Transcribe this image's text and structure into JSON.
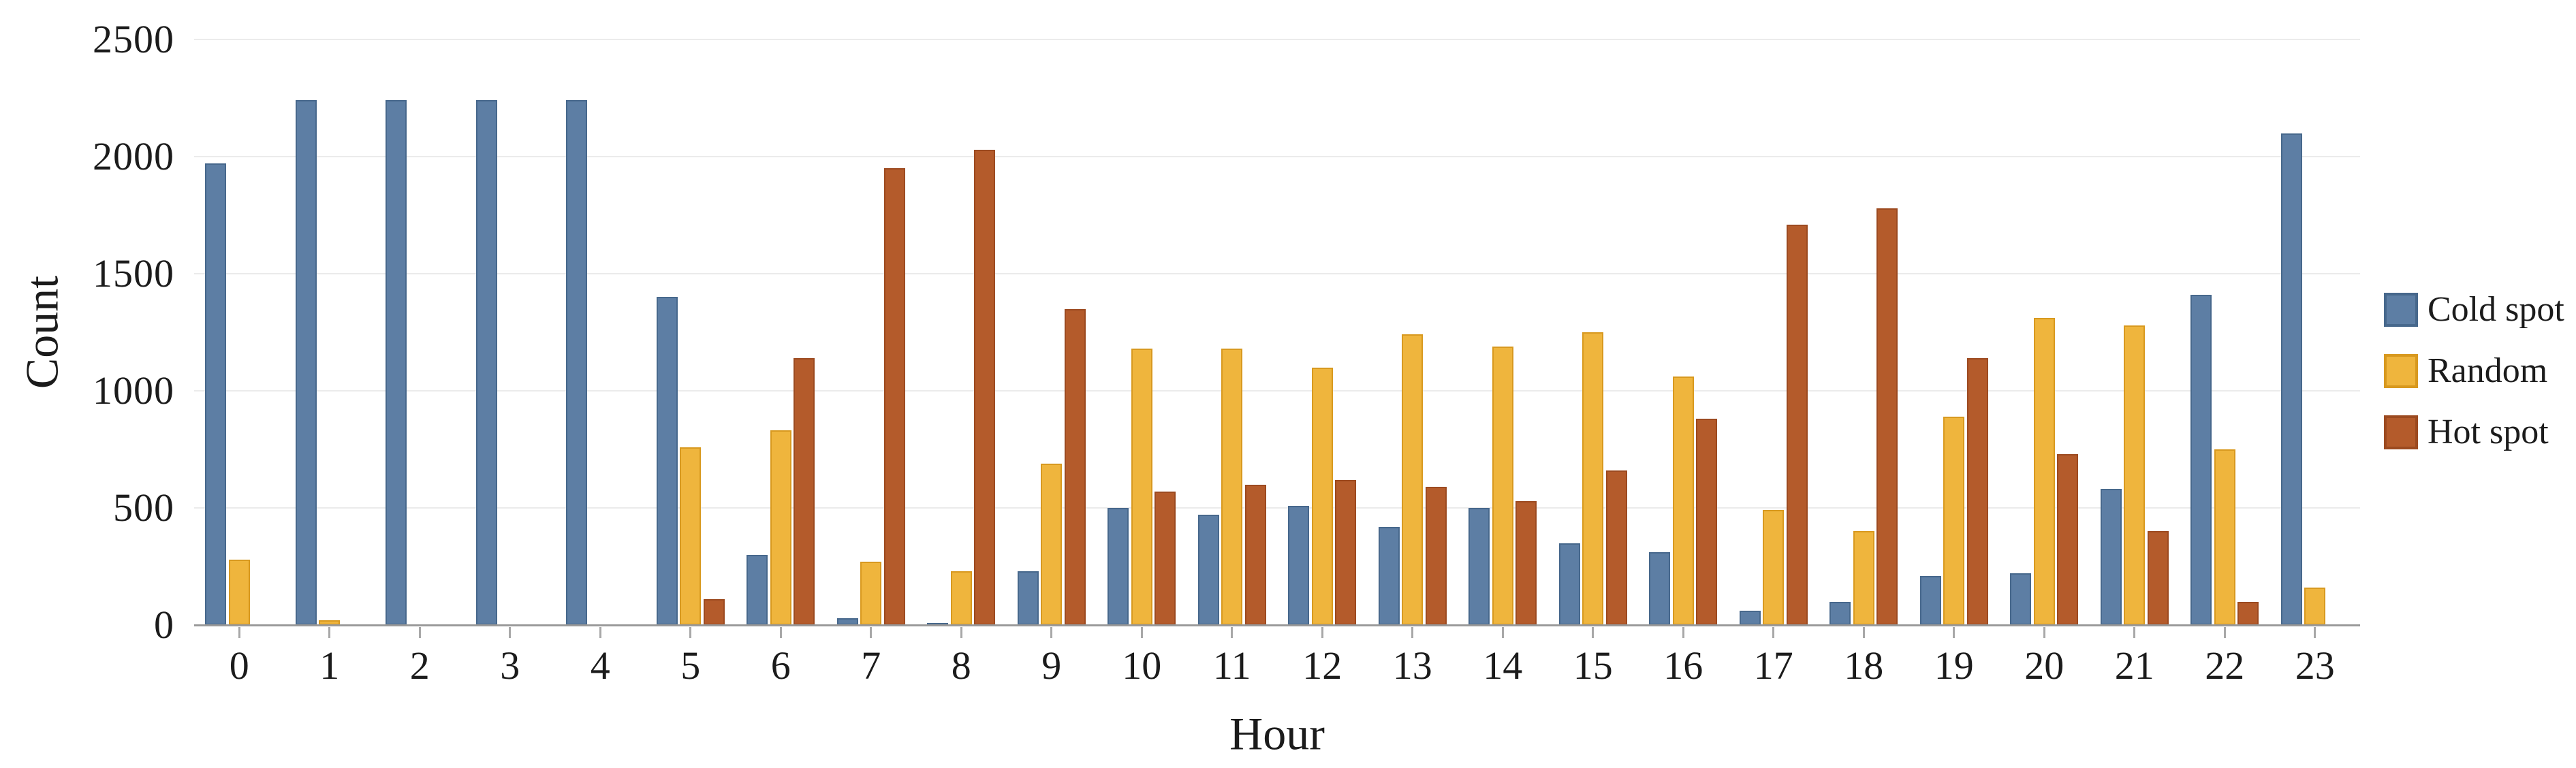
{
  "chart_data": {
    "type": "bar",
    "title": "",
    "xlabel": "Hour",
    "ylabel": "Count",
    "ylim": [
      0,
      2500
    ],
    "yticks": [
      0,
      500,
      1000,
      1500,
      2000,
      2500
    ],
    "grid": "horizontal",
    "legend_position": "right",
    "categories": [
      "0",
      "1",
      "2",
      "3",
      "4",
      "5",
      "6",
      "7",
      "8",
      "9",
      "10",
      "11",
      "12",
      "13",
      "14",
      "15",
      "16",
      "17",
      "18",
      "19",
      "20",
      "21",
      "22",
      "23"
    ],
    "series": [
      {
        "name": "Cold spot",
        "color": "#5d7ea4",
        "border_color": "#47688c",
        "values": [
          1970,
          2240,
          2240,
          2240,
          2240,
          1400,
          300,
          30,
          10,
          230,
          500,
          470,
          510,
          420,
          500,
          350,
          310,
          60,
          100,
          210,
          220,
          580,
          1410,
          2100
        ]
      },
      {
        "name": "Random",
        "color": "#efb53d",
        "border_color": "#d8991f",
        "values": [
          280,
          20,
          0,
          0,
          0,
          760,
          830,
          270,
          230,
          690,
          1180,
          1180,
          1100,
          1240,
          1190,
          1250,
          1060,
          490,
          400,
          890,
          1310,
          1280,
          750,
          160
        ]
      },
      {
        "name": "Hot spot",
        "color": "#b45b2b",
        "border_color": "#9c4a20",
        "values": [
          0,
          0,
          0,
          0,
          0,
          110,
          1140,
          1950,
          2030,
          1350,
          570,
          600,
          620,
          590,
          530,
          660,
          880,
          1710,
          1780,
          1140,
          730,
          400,
          100,
          0
        ]
      }
    ]
  },
  "colors": {
    "background": "#ffffff",
    "gridline": "#ebebeb",
    "axis_line": "#9a9a9a",
    "tick": "#a8a8a8",
    "text": "#1b1b1b"
  }
}
